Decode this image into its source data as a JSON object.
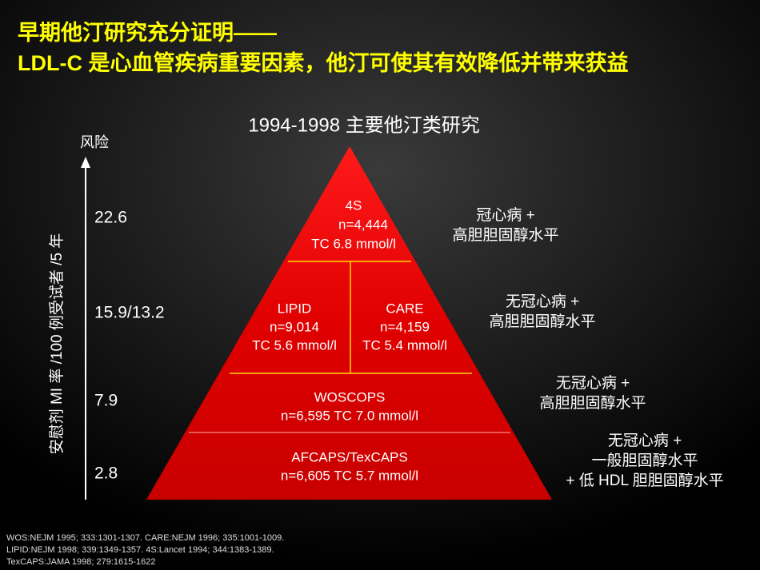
{
  "header": {
    "title_lines": [
      "早期他汀研究充分证明——",
      "LDL-C 是心血管疾病重要因素，他汀可使其有效降低并带来获益"
    ]
  },
  "subtitle": "1994-1998 主要他汀类研究",
  "axis": {
    "arrow_label": "风险",
    "vertical_label": "安慰剂 MI 率 /100 例受试者 /5 年",
    "levels": [
      "22.6",
      "15.9/13.2",
      "7.9",
      "2.8"
    ]
  },
  "pyramid": {
    "tiers": [
      {
        "lines": [
          "4S",
          "n=4,444",
          "TC 6.8 mmol/l"
        ]
      },
      {
        "lines": [
          "LIPID",
          "n=9,014",
          "TC 5.6  mmol/l"
        ]
      },
      {
        "lines": [
          "CARE",
          "n=4,159",
          "TC 5.4  mmol/l"
        ]
      },
      {
        "lines": [
          "WOSCOPS",
          "n=6,595  TC 7.0  mmol/l"
        ]
      },
      {
        "lines": [
          "AFCAPS/TexCAPS",
          "n=6,605  TC 5.7  mmol/l"
        ]
      }
    ]
  },
  "populations": [
    [
      "冠心病 +",
      "高胆胆固醇水平"
    ],
    [
      "无冠心病 +",
      "高胆胆固醇水平"
    ],
    [
      "无冠心病 +",
      "高胆胆固醇水平"
    ],
    [
      "无冠心病 +",
      "一般胆固醇水平",
      "+ 低 HDL 胆胆固醇水平"
    ]
  ],
  "footnotes": [
    "WOS:NEJM 1995; 333:1301-1307. CARE:NEJM 1996; 335:1001-1009.",
    "LIPID:NEJM 1998; 339:1349-1357. 4S:Lancet 1994; 344:1383-1389.",
    "TexCAPS:JAMA 1998; 279:1615-1622"
  ]
}
